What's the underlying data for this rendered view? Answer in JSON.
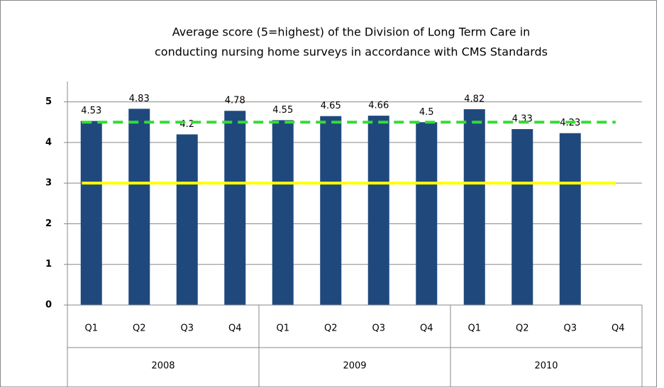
{
  "chart_data": {
    "type": "bar",
    "title": [
      "Average score (5=highest) of the Division of Long Term Care in",
      "conducting nursing home surveys in accordance with CMS Standards"
    ],
    "categories": [
      "Q1",
      "Q2",
      "Q3",
      "Q4",
      "Q1",
      "Q2",
      "Q3",
      "Q4",
      "Q1",
      "Q2",
      "Q3",
      "Q4"
    ],
    "groups": [
      "2008",
      "2009",
      "2010"
    ],
    "values": [
      4.53,
      4.83,
      4.2,
      4.78,
      4.55,
      4.65,
      4.66,
      4.5,
      4.82,
      4.33,
      4.23,
      null
    ],
    "color": "#1f497d",
    "reference_lines": [
      {
        "value": 4.5,
        "color": "#33dd33",
        "style": "dashed"
      },
      {
        "value": 3,
        "color": "#ffff00",
        "style": "solid"
      }
    ],
    "ylim": [
      0,
      5.5
    ],
    "yticks": [
      0,
      1,
      2,
      3,
      4,
      5
    ],
    "grid": true
  }
}
